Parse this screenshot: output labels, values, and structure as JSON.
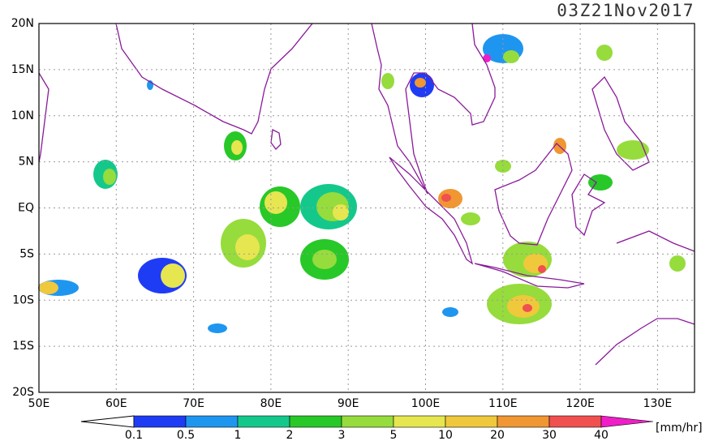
{
  "map": {
    "title": "03Z21Nov2017",
    "lat_labels": [
      "20N",
      "15N",
      "10N",
      "5N",
      "EQ",
      "5S",
      "10S",
      "15S",
      "20S"
    ],
    "lon_labels": [
      "50E",
      "60E",
      "70E",
      "80E",
      "90E",
      "100E",
      "110E",
      "120E",
      "130E"
    ]
  },
  "colorbar": {
    "labels": [
      0.1,
      0.5,
      1,
      2,
      3,
      5,
      10,
      20,
      30,
      40
    ],
    "colors": [
      "#1f3cf5",
      "#1e96f0",
      "#14c88c",
      "#28c828",
      "#96dc3c",
      "#e6e650",
      "#f0c83c",
      "#f09632",
      "#f05050",
      "#f01ec8"
    ],
    "units": "[mm/hr]"
  }
}
